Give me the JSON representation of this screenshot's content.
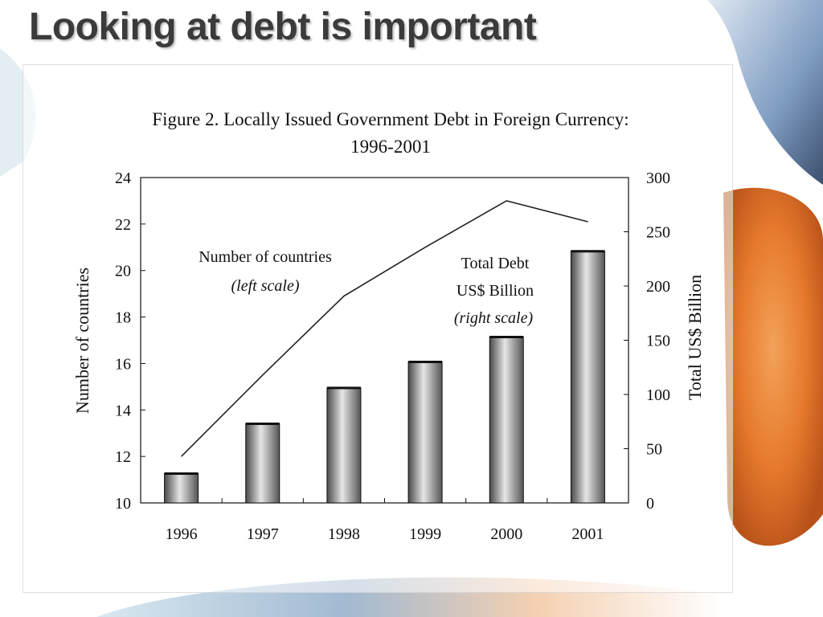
{
  "slide": {
    "title": "Looking at debt is important"
  },
  "colors": {
    "title_text": "#3b3b3b",
    "bar_dark": "#4a4a4a",
    "bar_light": "#e6e6e6",
    "line": "#222222",
    "theme_orange": "#e67a2c",
    "theme_blue": "#6f8fb8"
  },
  "chart_data": {
    "type": "bar",
    "title": "Figure 2. Locally Issued Government Debt in Foreign Currency: 1996-2001",
    "title_line1": "Figure 2. Locally Issued Government Debt in Foreign Currency:",
    "title_line2": "1996-2001",
    "categories": [
      "1996",
      "1997",
      "1998",
      "1999",
      "2000",
      "2001"
    ],
    "series": [
      {
        "name": "Total Debt US$ Billion",
        "chart_type": "bar",
        "axis": "right",
        "values": [
          27,
          73,
          106,
          130,
          153,
          232
        ]
      },
      {
        "name": "Number of countries",
        "chart_type": "line",
        "axis": "left",
        "values": [
          12.0,
          15.5,
          18.9,
          21.0,
          23.0,
          22.1
        ]
      }
    ],
    "ylabel_left": "Number of countries",
    "ylabel_right": "Total US$ Billion",
    "ylim_left": [
      10,
      24
    ],
    "ylim_right": [
      0,
      300
    ],
    "yticks_left": [
      "10",
      "12",
      "14",
      "16",
      "18",
      "20",
      "22",
      "24"
    ],
    "yticks_right": [
      "0",
      "50",
      "100",
      "150",
      "200",
      "250",
      "300"
    ],
    "annotations": {
      "line_label": "Number of countries",
      "line_scale": "(left scale)",
      "bar_label_1": "Total Debt",
      "bar_label_2": "US$ Billion",
      "bar_scale": "(right scale)"
    },
    "grid": false,
    "legend": "none"
  }
}
